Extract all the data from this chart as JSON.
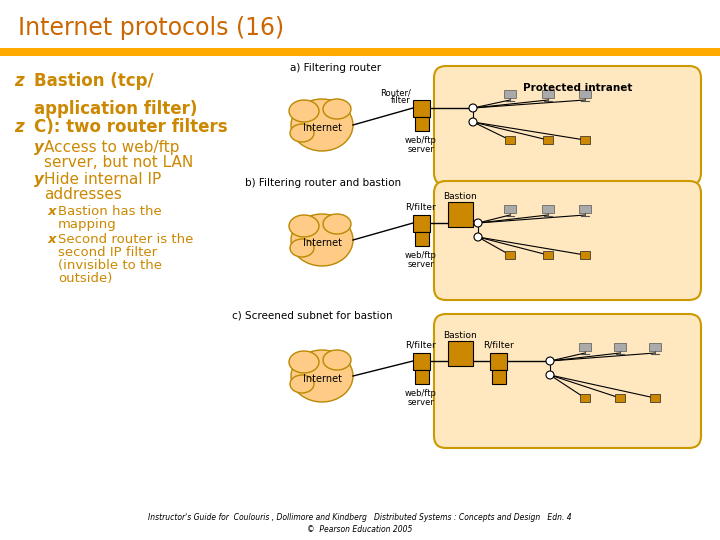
{
  "title": "Internet protocols (16)",
  "title_color": "#CC6600",
  "bg_color": "#FFFFFF",
  "bar_color": "#FFAA00",
  "bullet_color": "#CC8800",
  "bullet1_line1": "Bastion (tcp/",
  "bullet1_line2": "  application filter)",
  "bullet2": "C): two router filters",
  "sub1_line1": "Access to web/ftp",
  "sub1_line2": "  server, but not LAN",
  "sub2_line1": "Hide internal IP",
  "sub2_line2": "  addresses",
  "subsub1_line1": "Bastion has the",
  "subsub1_line2": "  mapping",
  "subsub2_line1": "Second router is the",
  "subsub2_line2": "  second IP filter",
  "subsub2_line3": "  (invisible to the",
  "subsub2_line4": "  outside)",
  "footer1": "Instructor's Guide for  Coulouris , Dollimore and Kindberg   Distributed Systems : Concepts and Design   Edn. 4",
  "footer2": "©  Pearson Education 2005",
  "inet_color": "#FFCC88",
  "intra_color": "#FFE8C0",
  "router_color": "#CC8800",
  "label_a": "a) Filtering router",
  "label_b": "b) Filtering router and bastion",
  "label_c": "c) Screened subnet for bastion",
  "label_internet": "Internet",
  "label_protected": "Protected intranet",
  "label_router_filter_l1": "Router/",
  "label_router_filter_l2": "filter",
  "label_rfilter": "R/filter",
  "label_bastion": "Bastion",
  "label_webftp_l1": "web/ftp",
  "label_webftp_l2": "server"
}
